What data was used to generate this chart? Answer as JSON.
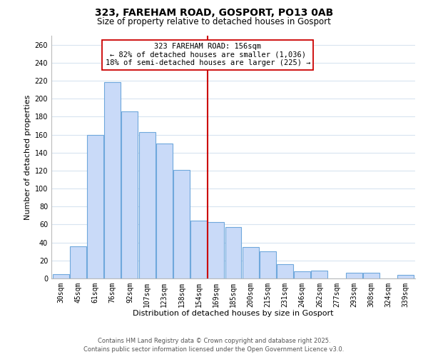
{
  "title": "323, FAREHAM ROAD, GOSPORT, PO13 0AB",
  "subtitle": "Size of property relative to detached houses in Gosport",
  "xlabel": "Distribution of detached houses by size in Gosport",
  "ylabel": "Number of detached properties",
  "categories": [
    "30sqm",
    "45sqm",
    "61sqm",
    "76sqm",
    "92sqm",
    "107sqm",
    "123sqm",
    "138sqm",
    "154sqm",
    "169sqm",
    "185sqm",
    "200sqm",
    "215sqm",
    "231sqm",
    "246sqm",
    "262sqm",
    "277sqm",
    "293sqm",
    "308sqm",
    "324sqm",
    "339sqm"
  ],
  "values": [
    5,
    36,
    160,
    218,
    186,
    163,
    150,
    121,
    64,
    63,
    57,
    35,
    30,
    16,
    8,
    9,
    0,
    6,
    6,
    0,
    4
  ],
  "bar_color": "#c9daf8",
  "bar_edge_color": "#6fa8dc",
  "vline_x": 8.5,
  "vline_color": "#cc0000",
  "annotation_title": "323 FAREHAM ROAD: 156sqm",
  "annotation_line1": "← 82% of detached houses are smaller (1,036)",
  "annotation_line2": "18% of semi-detached houses are larger (225) →",
  "annotation_box_color": "#ffffff",
  "annotation_box_edge": "#cc0000",
  "ylim": [
    0,
    270
  ],
  "yticks": [
    0,
    20,
    40,
    60,
    80,
    100,
    120,
    140,
    160,
    180,
    200,
    220,
    240,
    260
  ],
  "footer1": "Contains HM Land Registry data © Crown copyright and database right 2025.",
  "footer2": "Contains public sector information licensed under the Open Government Licence v3.0.",
  "bg_color": "#ffffff",
  "grid_color": "#d8e4f0",
  "title_fontsize": 10,
  "subtitle_fontsize": 8.5,
  "axis_label_fontsize": 8,
  "tick_fontsize": 7,
  "footer_fontsize": 6,
  "ann_fontsize": 7.5
}
